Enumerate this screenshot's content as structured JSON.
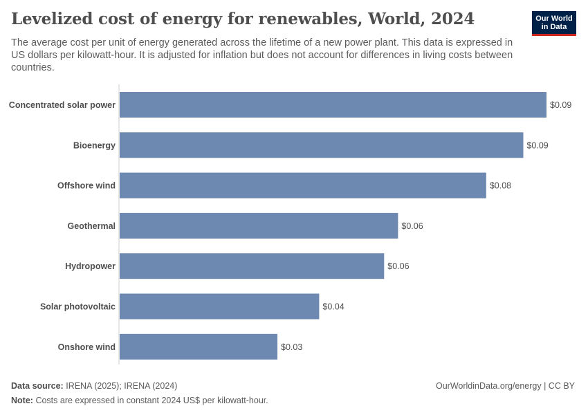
{
  "header": {
    "title": "Levelized cost of energy for renewables, World, 2024",
    "subtitle": "The average cost per unit of energy generated across the lifetime of a new power plant. This data is expressed in US dollars per kilowatt-hour. It is adjusted for inflation but does not account for differences in living costs between countries.",
    "logo_line1": "Our World",
    "logo_line2": "in Data"
  },
  "footer": {
    "source_label": "Data source:",
    "source_text": "IRENA (2025); IRENA (2024)",
    "note_label": "Note:",
    "note_text": "Costs are expressed in constant 2024 US$ per kilowatt-hour.",
    "credit": "OurWorldinData.org/energy | CC BY"
  },
  "colors": {
    "bar": "#6d88b1",
    "axis": "#cccccc",
    "logo_bg": "#002147",
    "logo_accent": "#ce261e"
  },
  "chart_data": {
    "type": "bar",
    "orientation": "horizontal",
    "categories": [
      "Concentrated solar power",
      "Bioenergy",
      "Offshore wind",
      "Geothermal",
      "Hydropower",
      "Solar photovoltaic",
      "Onshore wind"
    ],
    "values": [
      0.092,
      0.087,
      0.079,
      0.06,
      0.057,
      0.043,
      0.034
    ],
    "value_labels": [
      "$0.09",
      "$0.09",
      "$0.08",
      "$0.06",
      "$0.06",
      "$0.04",
      "$0.03"
    ],
    "xlim": [
      0,
      0.092
    ],
    "unit": "US$ per kWh",
    "grid": false
  }
}
